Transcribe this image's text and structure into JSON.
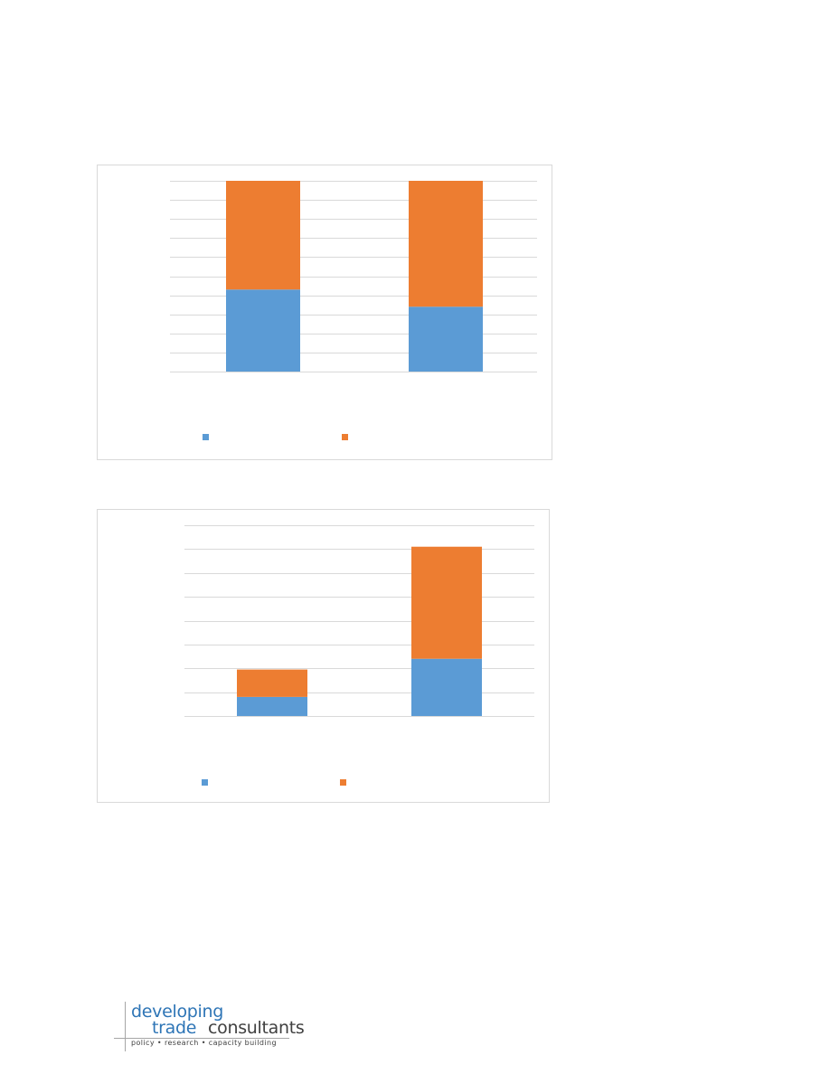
{
  "chart_data": [
    {
      "type": "bar",
      "stacked": true,
      "categories": [
        "",
        ""
      ],
      "series": [
        {
          "values": [
            43,
            34
          ],
          "color": "#5b9bd5"
        },
        {
          "values": [
            57,
            66
          ],
          "color": "#ed7d31"
        }
      ],
      "ylim": [
        0,
        100
      ],
      "gridlines": 10,
      "grid": true,
      "legend": "bottom"
    },
    {
      "type": "bar",
      "stacked": true,
      "categories": [
        "",
        ""
      ],
      "series": [
        {
          "values": [
            8,
            24
          ],
          "color": "#5b9bd5"
        },
        {
          "values": [
            11.5,
            47
          ],
          "color": "#ed7d31"
        }
      ],
      "ylim": [
        0,
        80
      ],
      "gridlines": 8,
      "grid": true,
      "legend": "bottom"
    }
  ],
  "logo": {
    "word1": "developing",
    "word2": "trade",
    "word3": "consultants",
    "tagline": "policy  •  research  •  capacity building",
    "accent_color": "#2e75b6"
  }
}
